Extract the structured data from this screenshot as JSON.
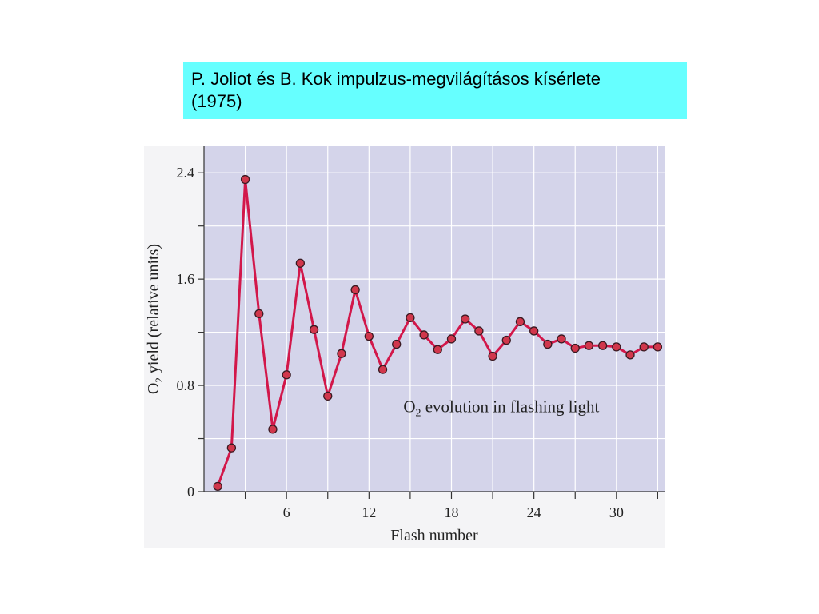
{
  "slide": {
    "title_line1": "P. Joliot és B. Kok impulzus-megvilágításos kísérlete",
    "title_line2": "(1975)"
  },
  "chart_data": {
    "type": "line",
    "xlabel": "Flash number",
    "ylabel_prefix": "O",
    "ylabel_sub": "2",
    "ylabel_suffix": " yield (relative units)",
    "annotation_prefix": "O",
    "annotation_sub": "2",
    "annotation_suffix": " evolution in flashing light",
    "xlim": [
      0,
      33.5
    ],
    "ylim": [
      0,
      2.6
    ],
    "x_ticks": [
      3,
      6,
      9,
      12,
      15,
      18,
      21,
      24,
      27,
      30,
      33
    ],
    "x_tick_labels": [
      "",
      "6",
      "",
      "12",
      "",
      "18",
      "",
      "24",
      "",
      "30",
      ""
    ],
    "y_ticks": [
      0,
      0.4,
      0.8,
      1.2,
      1.6,
      2.0,
      2.4
    ],
    "y_tick_labels": [
      "0",
      "",
      "0.8",
      "",
      "1.6",
      "",
      "2.4"
    ],
    "grid": true,
    "line_color": "#d2174a",
    "marker_color": "#d1374c",
    "plot_bg": "#d4d4ea",
    "x": [
      1,
      2,
      3,
      4,
      5,
      6,
      7,
      8,
      9,
      10,
      11,
      12,
      13,
      14,
      15,
      16,
      17,
      18,
      19,
      20,
      21,
      22,
      23,
      24,
      25,
      26,
      27,
      28,
      29,
      30,
      31,
      32,
      33
    ],
    "values": [
      0.04,
      0.33,
      2.35,
      1.34,
      0.47,
      0.88,
      1.72,
      1.22,
      0.72,
      1.04,
      1.52,
      1.17,
      0.92,
      1.11,
      1.31,
      1.18,
      1.07,
      1.15,
      1.3,
      1.21,
      1.02,
      1.14,
      1.28,
      1.21,
      1.11,
      1.15,
      1.08,
      1.1,
      1.1,
      1.09,
      1.03,
      1.09,
      1.09
    ]
  }
}
